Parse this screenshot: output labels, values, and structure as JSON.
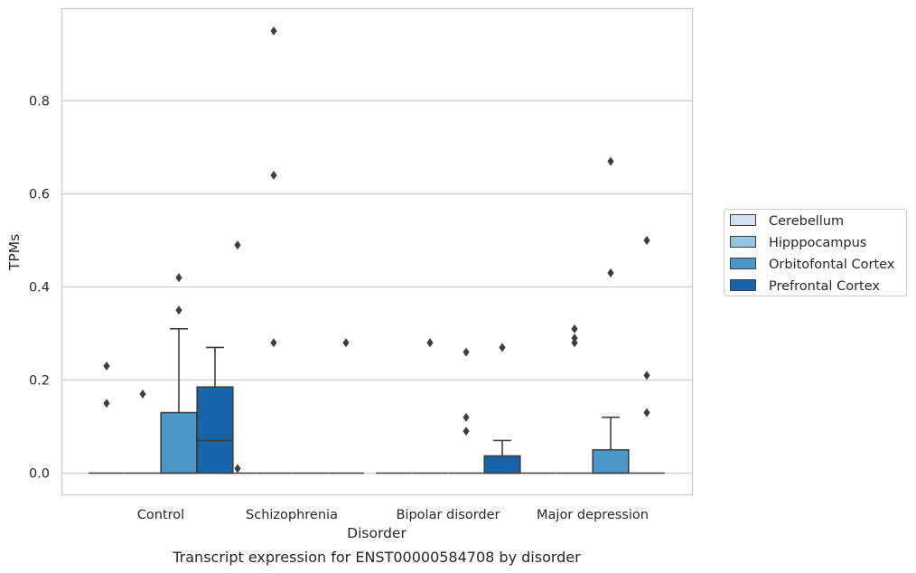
{
  "chart_data": {
    "type": "box",
    "title": "",
    "caption": "Transcript expression for ENST00000584708 by disorder",
    "xlabel": "Disorder",
    "ylabel": "TPMs",
    "ylim": [
      -0.048,
      0.995
    ],
    "yticks": [
      0.0,
      0.2,
      0.4,
      0.6,
      0.8
    ],
    "ytick_labels": [
      "0.0",
      "0.2",
      "0.4",
      "0.6",
      "0.8"
    ],
    "grid": "horizontal",
    "legend_position": "right",
    "categories": [
      "Control",
      "Schizophrenia",
      "Bipolar disorder",
      "Major depression"
    ],
    "series": [
      {
        "name": "Cerebellum",
        "color": "#d0e1f2",
        "boxes": [
          {
            "q1": 0,
            "median": 0,
            "q3": 0,
            "whisker_low": 0,
            "whisker_high": 0,
            "outliers": [
              0.23,
              0.15
            ]
          },
          {
            "q1": 0,
            "median": 0,
            "q3": 0,
            "whisker_low": 0,
            "whisker_high": 0,
            "outliers": [
              0.49,
              0.01
            ]
          },
          {
            "q1": 0,
            "median": 0,
            "q3": 0,
            "whisker_low": 0,
            "whisker_high": 0,
            "outliers": []
          },
          {
            "q1": 0,
            "median": 0,
            "q3": 0,
            "whisker_low": 0,
            "whisker_high": 0,
            "outliers": []
          }
        ]
      },
      {
        "name": "Hipppocampus",
        "color": "#94c4df",
        "boxes": [
          {
            "q1": 0,
            "median": 0,
            "q3": 0,
            "whisker_low": 0,
            "whisker_high": 0,
            "outliers": [
              0.17
            ]
          },
          {
            "q1": 0,
            "median": 0,
            "q3": 0,
            "whisker_low": 0,
            "whisker_high": 0,
            "outliers": [
              0.95,
              0.64,
              0.28
            ]
          },
          {
            "q1": 0,
            "median": 0,
            "q3": 0,
            "whisker_low": 0,
            "whisker_high": 0,
            "outliers": [
              0.28
            ]
          },
          {
            "q1": 0,
            "median": 0,
            "q3": 0,
            "whisker_low": 0,
            "whisker_high": 0,
            "outliers": [
              0.31,
              0.29,
              0.28
            ]
          }
        ]
      },
      {
        "name": "Orbitofontal Cortex",
        "color": "#4a98c9",
        "boxes": [
          {
            "q1": 0,
            "median": 0,
            "q3": 0.13,
            "whisker_low": 0,
            "whisker_high": 0.31,
            "outliers": [
              0.42,
              0.35
            ]
          },
          {
            "q1": 0,
            "median": 0,
            "q3": 0,
            "whisker_low": 0,
            "whisker_high": 0,
            "outliers": []
          },
          {
            "q1": 0,
            "median": 0,
            "q3": 0,
            "whisker_low": 0,
            "whisker_high": 0,
            "outliers": [
              0.26,
              0.12,
              0.09
            ]
          },
          {
            "q1": 0,
            "median": 0,
            "q3": 0.05,
            "whisker_low": 0,
            "whisker_high": 0.12,
            "outliers": [
              0.67,
              0.43
            ]
          }
        ]
      },
      {
        "name": "Prefrontal Cortex",
        "color": "#1764ab",
        "boxes": [
          {
            "q1": 0,
            "median": 0.07,
            "q3": 0.185,
            "whisker_low": 0,
            "whisker_high": 0.27,
            "outliers": []
          },
          {
            "q1": 0,
            "median": 0,
            "q3": 0,
            "whisker_low": 0,
            "whisker_high": 0,
            "outliers": [
              0.28
            ]
          },
          {
            "q1": 0,
            "median": 0,
            "q3": 0.037,
            "whisker_low": 0,
            "whisker_high": 0.07,
            "outliers": [
              0.27
            ]
          },
          {
            "q1": 0,
            "median": 0,
            "q3": 0,
            "whisker_low": 0,
            "whisker_high": 0,
            "outliers": [
              0.5,
              0.21,
              0.13
            ]
          }
        ]
      }
    ]
  }
}
